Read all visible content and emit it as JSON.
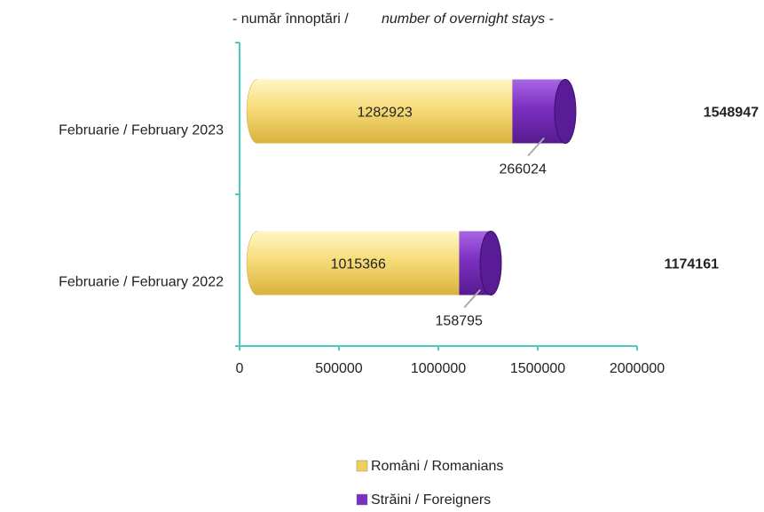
{
  "chart_data": {
    "type": "bar",
    "orientation": "horizontal",
    "stacked": true,
    "title": "- număr înnoptări /",
    "subtitle": "number of overnight stays -",
    "categories": [
      "Februarie  / February 2023",
      "Februarie / February 2022"
    ],
    "series": [
      {
        "name": "Români / Romanians",
        "color": "#f2cf5b",
        "values": [
          1282923,
          1015366
        ]
      },
      {
        "name": "Străini / Foreigners",
        "color": "#7b2fc0",
        "values": [
          266024,
          158795
        ]
      }
    ],
    "totals": [
      1548947,
      1174161
    ],
    "xlim": [
      0,
      2000000
    ],
    "xticks": [
      0,
      500000,
      1000000,
      1500000,
      2000000
    ],
    "axis_color": "#4cc9c0"
  }
}
